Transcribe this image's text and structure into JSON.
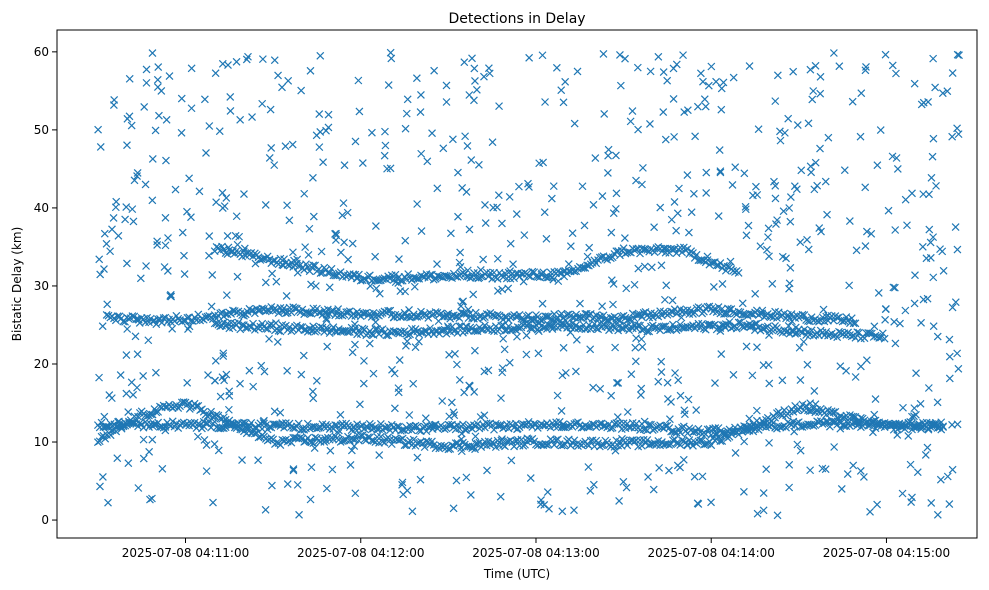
{
  "chart_data": {
    "type": "scatter",
    "title": "Detections in Delay",
    "xlabel": "Time (UTC)",
    "ylabel": "Bistatic Delay (km)",
    "marker": "x",
    "color": "#1f77b4",
    "grid": false,
    "x_axis_kind": "time",
    "xlim": [
      "2025-07-08 04:10:16",
      "2025-07-08 04:15:31"
    ],
    "ylim": [
      -2.3,
      62.8
    ],
    "x_ticks": [
      "2025-07-08 04:11:00",
      "2025-07-08 04:12:00",
      "2025-07-08 04:13:00",
      "2025-07-08 04:14:00",
      "2025-07-08 04:15:00"
    ],
    "y_ticks": [
      0,
      10,
      20,
      30,
      40,
      50,
      60
    ],
    "time_range": [
      "2025-07-08 04:10:30",
      "2025-07-08 04:15:25"
    ],
    "tracks": [
      {
        "x": [
          "2025-07-08 04:10:30",
          "2025-07-08 04:11:00",
          "2025-07-08 04:11:30",
          "2025-07-08 04:12:00",
          "2025-07-08 04:12:30",
          "2025-07-08 04:13:00",
          "2025-07-08 04:13:30",
          "2025-07-08 04:14:00",
          "2025-07-08 04:14:30",
          "2025-07-08 04:15:00",
          "2025-07-08 04:15:20"
        ],
        "y": [
          12.3,
          12.2,
          12.0,
          11.9,
          11.8,
          12.2,
          12.1,
          11.3,
          12.3,
          12.2,
          12.1
        ]
      },
      {
        "x": [
          "2025-07-08 04:10:33",
          "2025-07-08 04:10:50",
          "2025-07-08 04:11:05",
          "2025-07-08 04:11:30",
          "2025-07-08 04:12:00",
          "2025-07-08 04:12:30",
          "2025-07-08 04:13:00",
          "2025-07-08 04:13:30",
          "2025-07-08 04:14:00",
          "2025-07-08 04:14:30",
          "2025-07-08 04:14:50"
        ],
        "y": [
          26.0,
          25.5,
          26.0,
          27.0,
          26.5,
          26.2,
          26.0,
          26.0,
          27.0,
          26.0,
          25.5
        ]
      },
      {
        "x": [
          "2025-07-08 04:11:10",
          "2025-07-08 04:11:40",
          "2025-07-08 04:12:10",
          "2025-07-08 04:12:40",
          "2025-07-08 04:13:10",
          "2025-07-08 04:13:40",
          "2025-07-08 04:14:10",
          "2025-07-08 04:14:40",
          "2025-07-08 04:15:00"
        ],
        "y": [
          25.0,
          24.5,
          24.0,
          24.5,
          25.0,
          24.5,
          25.0,
          23.8,
          23.5
        ]
      },
      {
        "x": [
          "2025-07-08 04:10:30",
          "2025-07-08 04:10:45",
          "2025-07-08 04:11:00",
          "2025-07-08 04:11:30",
          "2025-07-08 04:12:00",
          "2025-07-08 04:12:30",
          "2025-07-08 04:13:00",
          "2025-07-08 04:13:30",
          "2025-07-08 04:14:00",
          "2025-07-08 04:14:30",
          "2025-07-08 04:15:00",
          "2025-07-08 04:15:20"
        ],
        "y": [
          10.0,
          13.5,
          15.0,
          10.0,
          10.5,
          9.5,
          10.0,
          9.8,
          10.0,
          14.5,
          12.0,
          12.0
        ]
      },
      {
        "x": [
          "2025-07-08 04:11:10",
          "2025-07-08 04:12:00",
          "2025-07-08 04:13:10",
          "2025-07-08 04:13:30",
          "2025-07-08 04:13:50",
          "2025-07-08 04:14:10"
        ],
        "y": [
          34.8,
          31.0,
          31.5,
          34.5,
          34.6,
          31.5
        ]
      }
    ],
    "background_noise": {
      "y_range": [
        0.5,
        60
      ],
      "approx_count": 900
    }
  }
}
